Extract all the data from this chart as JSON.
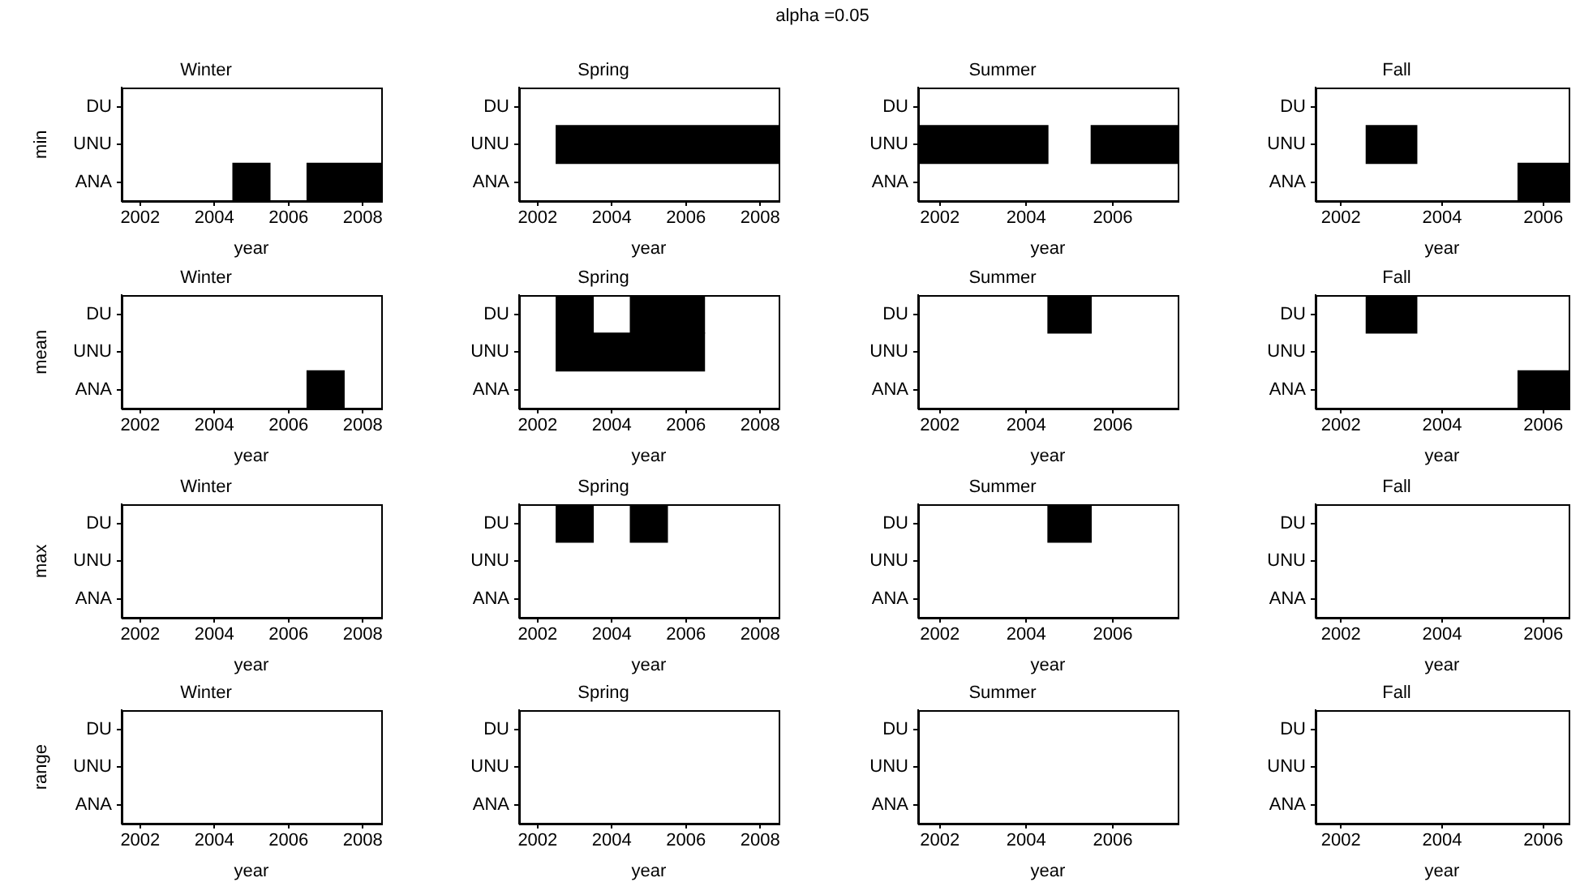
{
  "chart_data": [
    {
      "type": "bar",
      "orientation": "horizontal",
      "title": "Winter",
      "xlabel": "year",
      "ylabel": "min",
      "annotations": [
        "alpha =0.05"
      ],
      "categories": [
        "DU",
        "UNU",
        "ANA"
      ],
      "xlim": [
        2001.5,
        2008.5
      ],
      "xticks": [
        2002,
        2004,
        2006,
        2008
      ],
      "series": [
        {
          "color": "#000000",
          "values": [
            null,
            null,
            1
          ],
          "base": [
            null,
            null,
            2004.5
          ]
        },
        {
          "color": "#000000",
          "values": [
            null,
            null,
            2
          ],
          "base": [
            null,
            null,
            2006.5
          ]
        }
      ]
    },
    {
      "type": "bar",
      "orientation": "horizontal",
      "title": "Spring",
      "xlabel": "year",
      "categories": [
        "DU",
        "UNU",
        "ANA"
      ],
      "xlim": [
        2001.5,
        2008.5
      ],
      "xticks": [
        2002,
        2004,
        2006,
        2008
      ],
      "series": [
        {
          "color": "#000000",
          "values": [
            null,
            6,
            null
          ],
          "base": [
            null,
            2002.5,
            null
          ]
        }
      ]
    },
    {
      "type": "bar",
      "orientation": "horizontal",
      "title": "Summer",
      "xlabel": "year",
      "categories": [
        "DU",
        "UNU",
        "ANA"
      ],
      "xlim": [
        2001.5,
        2007.5
      ],
      "xticks": [
        2002,
        2004,
        2006
      ],
      "series": [
        {
          "color": "#000000",
          "values": [
            null,
            3,
            null
          ],
          "base": [
            null,
            2001.5,
            null
          ]
        },
        {
          "color": "#000000",
          "values": [
            null,
            2,
            null
          ],
          "base": [
            null,
            2005.5,
            null
          ]
        }
      ]
    },
    {
      "type": "bar",
      "orientation": "horizontal",
      "title": "Fall",
      "xlabel": "year",
      "categories": [
        "DU",
        "UNU",
        "ANA"
      ],
      "xlim": [
        2001.5,
        2006.5
      ],
      "xticks": [
        2002,
        2004,
        2006
      ],
      "series": [
        {
          "color": "#000000",
          "values": [
            null,
            1,
            1
          ],
          "base": [
            null,
            2002.5,
            2005.5
          ]
        }
      ]
    },
    {
      "type": "bar",
      "orientation": "horizontal",
      "title": "Winter",
      "xlabel": "year",
      "ylabel": "mean",
      "categories": [
        "DU",
        "UNU",
        "ANA"
      ],
      "xlim": [
        2001.5,
        2008.5
      ],
      "xticks": [
        2002,
        2004,
        2006,
        2008
      ],
      "series": [
        {
          "color": "#000000",
          "values": [
            null,
            null,
            1
          ],
          "base": [
            null,
            null,
            2006.5
          ]
        }
      ]
    },
    {
      "type": "bar",
      "orientation": "horizontal",
      "title": "Spring",
      "xlabel": "year",
      "categories": [
        "DU",
        "UNU",
        "ANA"
      ],
      "xlim": [
        2001.5,
        2008.5
      ],
      "xticks": [
        2002,
        2004,
        2006,
        2008
      ],
      "series": [
        {
          "color": "#000000",
          "values": [
            1,
            4,
            null
          ],
          "base": [
            2002.5,
            2002.5,
            null
          ]
        },
        {
          "color": "#000000",
          "values": [
            2,
            null,
            null
          ],
          "base": [
            2004.5,
            null,
            null
          ]
        }
      ]
    },
    {
      "type": "bar",
      "orientation": "horizontal",
      "title": "Summer",
      "xlabel": "year",
      "categories": [
        "DU",
        "UNU",
        "ANA"
      ],
      "xlim": [
        2001.5,
        2007.5
      ],
      "xticks": [
        2002,
        2004,
        2006
      ],
      "series": [
        {
          "color": "#000000",
          "values": [
            1,
            null,
            null
          ],
          "base": [
            2004.5,
            null,
            null
          ]
        }
      ]
    },
    {
      "type": "bar",
      "orientation": "horizontal",
      "title": "Fall",
      "xlabel": "year",
      "categories": [
        "DU",
        "UNU",
        "ANA"
      ],
      "xlim": [
        2001.5,
        2006.5
      ],
      "xticks": [
        2002,
        2004,
        2006
      ],
      "series": [
        {
          "color": "#000000",
          "values": [
            1,
            null,
            1
          ],
          "base": [
            2002.5,
            null,
            2005.5
          ]
        }
      ]
    },
    {
      "type": "bar",
      "orientation": "horizontal",
      "title": "Winter",
      "xlabel": "year",
      "ylabel": "max",
      "categories": [
        "DU",
        "UNU",
        "ANA"
      ],
      "xlim": [
        2001.5,
        2008.5
      ],
      "xticks": [
        2002,
        2004,
        2006,
        2008
      ]
    },
    {
      "type": "bar",
      "orientation": "horizontal",
      "title": "Spring",
      "xlabel": "year",
      "categories": [
        "DU",
        "UNU",
        "ANA"
      ],
      "xlim": [
        2001.5,
        2008.5
      ],
      "xticks": [
        2002,
        2004,
        2006,
        2008
      ],
      "series": [
        {
          "color": "#000000",
          "values": [
            1,
            null,
            null
          ],
          "base": [
            2002.5,
            null,
            null
          ]
        },
        {
          "color": "#000000",
          "values": [
            1,
            null,
            null
          ],
          "base": [
            2004.5,
            null,
            null
          ]
        }
      ]
    },
    {
      "type": "bar",
      "orientation": "horizontal",
      "title": "Summer",
      "xlabel": "year",
      "categories": [
        "DU",
        "UNU",
        "ANA"
      ],
      "xlim": [
        2001.5,
        2007.5
      ],
      "xticks": [
        2002,
        2004,
        2006
      ],
      "series": [
        {
          "color": "#000000",
          "values": [
            1,
            null,
            null
          ],
          "base": [
            2004.5,
            null,
            null
          ]
        }
      ]
    },
    {
      "type": "bar",
      "orientation": "horizontal",
      "title": "Fall",
      "xlabel": "year",
      "categories": [
        "DU",
        "UNU",
        "ANA"
      ],
      "xlim": [
        2001.5,
        2006.5
      ],
      "xticks": [
        2002,
        2004,
        2006
      ]
    },
    {
      "type": "bar",
      "orientation": "horizontal",
      "title": "Winter",
      "xlabel": "year",
      "ylabel": "range",
      "categories": [
        "DU",
        "UNU",
        "ANA"
      ],
      "xlim": [
        2001.5,
        2008.5
      ],
      "xticks": [
        2002,
        2004,
        2006,
        2008
      ]
    },
    {
      "type": "bar",
      "orientation": "horizontal",
      "title": "Spring",
      "xlabel": "year",
      "categories": [
        "DU",
        "UNU",
        "ANA"
      ],
      "xlim": [
        2001.5,
        2008.5
      ],
      "xticks": [
        2002,
        2004,
        2006,
        2008
      ]
    },
    {
      "type": "bar",
      "orientation": "horizontal",
      "title": "Summer",
      "xlabel": "year",
      "categories": [
        "DU",
        "UNU",
        "ANA"
      ],
      "xlim": [
        2001.5,
        2007.5
      ],
      "xticks": [
        2002,
        2004,
        2006
      ]
    },
    {
      "type": "bar",
      "orientation": "horizontal",
      "title": "Fall",
      "xlabel": "year",
      "categories": [
        "DU",
        "UNU",
        "ANA"
      ],
      "xlim": [
        2001.5,
        2006.5
      ],
      "xticks": [
        2002,
        2004,
        2006
      ]
    }
  ]
}
